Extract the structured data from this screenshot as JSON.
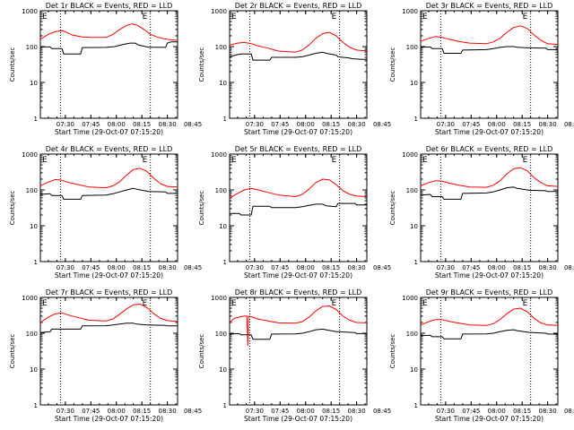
{
  "figure": {
    "xlabel": "Start Time (29-Oct-07 07:15:20)",
    "ylabel": "Counts/sec",
    "colors": {
      "events": "#000000",
      "lld": "#ff0000",
      "axes": "#000000",
      "background": "#ffffff"
    },
    "marker_labels": {
      "start": "E",
      "end": "E"
    }
  },
  "chart_data": [
    {
      "type": "line",
      "title": "Det 1r BLACK = Events, RED = LLD",
      "xlabel": "Start Time (29-Oct-07 07:15:20)",
      "ylabel": "Counts/sec",
      "yscale": "log",
      "ylim": [
        1,
        1000
      ],
      "yticks": [
        "1",
        "10",
        "100",
        "1000"
      ],
      "xticks": [
        "07:30",
        "07:45",
        "08:00",
        "08:15",
        "08:30",
        "08:45"
      ],
      "xrange_minutes": [
        15.3,
        96
      ],
      "vlines_minutes": [
        14.5,
        80
      ],
      "series": [
        {
          "name": "Events",
          "color": "#000000",
          "x": [
            15.3,
            21,
            22,
            28,
            29,
            39,
            40,
            54,
            59,
            64,
            68,
            71,
            73,
            79,
            80,
            89,
            90,
            92,
            95,
            96
          ],
          "y": [
            98,
            98,
            88,
            88,
            62,
            62,
            94,
            95,
            100,
            115,
            125,
            125,
            110,
            96,
            96,
            95,
            125,
            135,
            135,
            135
          ]
        },
        {
          "name": "LLD",
          "color": "#ff0000",
          "x": [
            15.3,
            20,
            24,
            28,
            30,
            34,
            40,
            45,
            54,
            58,
            62,
            66,
            69,
            72,
            75,
            78,
            80,
            84,
            88,
            92,
            96
          ],
          "y": [
            160,
            220,
            260,
            280,
            260,
            210,
            185,
            180,
            180,
            220,
            300,
            390,
            430,
            400,
            330,
            260,
            220,
            185,
            165,
            155,
            150
          ]
        }
      ]
    },
    {
      "type": "line",
      "title": "Det 2r BLACK = Events, RED = LLD",
      "xlabel": "Start Time (29-Oct-07 07:15:20)",
      "ylabel": "Counts/sec",
      "yscale": "log",
      "ylim": [
        1,
        1000
      ],
      "yticks": [
        "1",
        "10",
        "100",
        "1000"
      ],
      "xticks": [
        "07:30",
        "07:45",
        "08:00",
        "08:15",
        "08:30",
        "08:45"
      ],
      "xrange_minutes": [
        15.3,
        96
      ],
      "vlines_minutes": [
        14.5,
        80
      ],
      "series": [
        {
          "name": "Events",
          "color": "#000000",
          "x": [
            15.3,
            20,
            22,
            28,
            29,
            39,
            40,
            54,
            58,
            62,
            66,
            70,
            72,
            78,
            79,
            86,
            87,
            93,
            96
          ],
          "y": [
            52,
            60,
            62,
            62,
            42,
            42,
            50,
            50,
            52,
            58,
            65,
            70,
            65,
            58,
            52,
            48,
            46,
            44,
            44
          ]
        },
        {
          "name": "LLD",
          "color": "#ff0000",
          "x": [
            15.3,
            20,
            24,
            28,
            32,
            38,
            44,
            54,
            58,
            62,
            66,
            70,
            74,
            78,
            82,
            86,
            90,
            96
          ],
          "y": [
            110,
            125,
            130,
            120,
            105,
            90,
            75,
            70,
            80,
            110,
            170,
            230,
            250,
            200,
            130,
            95,
            80,
            75
          ]
        }
      ]
    },
    {
      "type": "line",
      "title": "Det 3r BLACK = Events, RED = LLD",
      "xlabel": "Start Time (29-Oct-07 07:15:20)",
      "ylabel": "Counts/sec",
      "yscale": "log",
      "ylim": [
        1,
        1000
      ],
      "yticks": [
        "1",
        "10",
        "100",
        "1000"
      ],
      "xticks": [
        "07:30",
        "07:45",
        "08:00",
        "08:15",
        "08:30",
        "08:45"
      ],
      "xrange_minutes": [
        15.3,
        96
      ],
      "vlines_minutes": [
        14.5,
        80
      ],
      "series": [
        {
          "name": "Events",
          "color": "#000000",
          "x": [
            15.3,
            21,
            22,
            28,
            29,
            39,
            40,
            54,
            58,
            62,
            66,
            70,
            72,
            78,
            79,
            89,
            90,
            96
          ],
          "y": [
            96,
            98,
            88,
            88,
            65,
            65,
            80,
            82,
            88,
            95,
            100,
            100,
            96,
            92,
            92,
            90,
            82,
            82
          ]
        },
        {
          "name": "LLD",
          "color": "#ff0000",
          "x": [
            15.3,
            20,
            24,
            28,
            32,
            38,
            44,
            54,
            58,
            62,
            66,
            70,
            74,
            78,
            82,
            86,
            90,
            96
          ],
          "y": [
            140,
            170,
            190,
            180,
            160,
            140,
            125,
            120,
            135,
            170,
            250,
            340,
            380,
            320,
            210,
            150,
            120,
            115
          ]
        }
      ]
    },
    {
      "type": "line",
      "title": "Det 4r BLACK = Events, RED = LLD",
      "xlabel": "Start Time (29-Oct-07 07:15:20)",
      "ylabel": "Counts/sec",
      "yscale": "log",
      "ylim": [
        1,
        1000
      ],
      "yticks": [
        "1",
        "10",
        "100",
        "1000"
      ],
      "xticks": [
        "07:30",
        "07:45",
        "08:00",
        "08:15",
        "08:30",
        "08:45"
      ],
      "xrange_minutes": [
        15.3,
        96
      ],
      "vlines_minutes": [
        14.5,
        80
      ],
      "series": [
        {
          "name": "Events",
          "color": "#000000",
          "x": [
            15.3,
            21,
            22,
            28,
            29,
            39,
            40,
            54,
            58,
            62,
            66,
            70,
            72,
            78,
            79,
            89,
            90,
            96
          ],
          "y": [
            75,
            78,
            70,
            70,
            55,
            55,
            70,
            72,
            78,
            88,
            100,
            110,
            105,
            92,
            90,
            88,
            80,
            80
          ]
        },
        {
          "name": "LLD",
          "color": "#ff0000",
          "x": [
            15.3,
            20,
            24,
            28,
            32,
            38,
            44,
            54,
            58,
            62,
            66,
            70,
            74,
            78,
            82,
            86,
            90,
            96
          ],
          "y": [
            130,
            165,
            195,
            185,
            160,
            140,
            120,
            115,
            130,
            170,
            260,
            370,
            400,
            330,
            210,
            150,
            125,
            120
          ]
        }
      ]
    },
    {
      "type": "line",
      "title": "Det 5r BLACK = Events, RED = LLD",
      "xlabel": "Start Time (29-Oct-07 07:15:20)",
      "ylabel": "Counts/sec",
      "yscale": "log",
      "ylim": [
        1,
        1000
      ],
      "yticks": [
        "1",
        "10",
        "100",
        "1000"
      ],
      "xticks": [
        "07:30",
        "07:45",
        "08:00",
        "08:15",
        "08:30",
        "08:45"
      ],
      "xrange_minutes": [
        15.3,
        96
      ],
      "vlines_minutes": [
        14.5,
        80
      ],
      "series": [
        {
          "name": "Events",
          "color": "#000000",
          "x": [
            15.3,
            21,
            22,
            28,
            29,
            39,
            40,
            54,
            58,
            62,
            66,
            70,
            72,
            78,
            79,
            89,
            90,
            96
          ],
          "y": [
            22,
            22,
            20,
            20,
            35,
            35,
            32,
            32,
            34,
            37,
            40,
            40,
            36,
            34,
            42,
            42,
            38,
            38
          ]
        },
        {
          "name": "LLD",
          "color": "#ff0000",
          "x": [
            15.3,
            20,
            24,
            28,
            32,
            38,
            44,
            54,
            58,
            62,
            66,
            70,
            74,
            78,
            82,
            86,
            90,
            96
          ],
          "y": [
            60,
            80,
            100,
            110,
            100,
            85,
            72,
            65,
            75,
            105,
            160,
            200,
            190,
            140,
            95,
            75,
            68,
            65
          ]
        }
      ]
    },
    {
      "type": "line",
      "title": "Det 6r BLACK = Events, RED = LLD",
      "xlabel": "Start Time (29-Oct-07 07:15:20)",
      "ylabel": "Counts/sec",
      "yscale": "log",
      "ylim": [
        1,
        1000
      ],
      "yticks": [
        "1",
        "10",
        "100",
        "1000"
      ],
      "xticks": [
        "07:30",
        "07:45",
        "08:00",
        "08:15",
        "08:30",
        "08:45"
      ],
      "xrange_minutes": [
        15.3,
        96
      ],
      "vlines_minutes": [
        14.5,
        80
      ],
      "series": [
        {
          "name": "Events",
          "color": "#000000",
          "x": [
            15.3,
            21,
            22,
            28,
            29,
            39,
            40,
            54,
            58,
            62,
            66,
            70,
            72,
            78,
            79,
            89,
            90,
            96
          ],
          "y": [
            72,
            75,
            65,
            65,
            55,
            55,
            80,
            82,
            88,
            100,
            115,
            120,
            110,
            100,
            98,
            95,
            90,
            90
          ]
        },
        {
          "name": "LLD",
          "color": "#ff0000",
          "x": [
            15.3,
            20,
            24,
            28,
            32,
            38,
            44,
            54,
            58,
            62,
            66,
            70,
            74,
            78,
            82,
            86,
            90,
            96
          ],
          "y": [
            130,
            160,
            180,
            175,
            155,
            135,
            120,
            118,
            135,
            180,
            280,
            390,
            420,
            340,
            220,
            160,
            130,
            125
          ]
        }
      ]
    },
    {
      "type": "line",
      "title": "Det 7r BLACK = Events, RED = LLD",
      "xlabel": "Start Time (29-Oct-07 07:15:20)",
      "ylabel": "Counts/sec",
      "yscale": "log",
      "ylim": [
        1,
        1000
      ],
      "yticks": [
        "1",
        "10",
        "100",
        "1000"
      ],
      "xticks": [
        "07:30",
        "07:45",
        "08:00",
        "08:15",
        "08:30",
        "08:45"
      ],
      "xrange_minutes": [
        15.3,
        96
      ],
      "vlines_minutes": [
        14.5,
        80
      ],
      "series": [
        {
          "name": "Events",
          "color": "#000000",
          "x": [
            15.3,
            21,
            22,
            28,
            29,
            39,
            40,
            54,
            58,
            62,
            66,
            70,
            72,
            78,
            79,
            89,
            90,
            96
          ],
          "y": [
            105,
            110,
            130,
            130,
            130,
            130,
            160,
            162,
            170,
            180,
            190,
            190,
            180,
            170,
            170,
            165,
            160,
            160
          ]
        },
        {
          "name": "LLD",
          "color": "#ff0000",
          "x": [
            15.3,
            20,
            24,
            28,
            32,
            38,
            44,
            54,
            58,
            62,
            66,
            70,
            74,
            78,
            82,
            86,
            90,
            96
          ],
          "y": [
            200,
            280,
            350,
            370,
            320,
            270,
            230,
            220,
            250,
            340,
            480,
            620,
            650,
            520,
            350,
            260,
            225,
            215
          ]
        }
      ]
    },
    {
      "type": "line",
      "title": "Det 8r BLACK = Events, RED = LLD",
      "xlabel": "Start Time (29-Oct-07 07:15:20)",
      "ylabel": "Counts/sec",
      "yscale": "log",
      "ylim": [
        1,
        1000
      ],
      "yticks": [
        "1",
        "10",
        "100",
        "1000"
      ],
      "xticks": [
        "07:30",
        "07:45",
        "08:00",
        "08:15",
        "08:30",
        "08:45"
      ],
      "xrange_minutes": [
        15.3,
        96
      ],
      "vlines_minutes": [
        14.5,
        80
      ],
      "series": [
        {
          "name": "Events",
          "color": "#000000",
          "x": [
            15.3,
            21,
            22,
            28,
            29,
            39,
            40,
            54,
            58,
            62,
            66,
            70,
            72,
            78,
            79,
            89,
            90,
            96
          ],
          "y": [
            95,
            98,
            90,
            90,
            68,
            68,
            95,
            96,
            100,
            110,
            125,
            130,
            125,
            110,
            110,
            105,
            98,
            98
          ]
        },
        {
          "name": "LLD",
          "color": "#ff0000",
          "x": [
            15.3,
            18,
            22,
            24,
            25.5,
            26,
            26.5,
            28,
            32,
            38,
            44,
            54,
            58,
            62,
            66,
            70,
            74,
            78,
            82,
            86,
            90,
            96
          ],
          "y": [
            200,
            260,
            290,
            300,
            300,
            45,
            300,
            290,
            250,
            220,
            195,
            190,
            210,
            280,
            420,
            560,
            580,
            460,
            300,
            230,
            200,
            195
          ]
        }
      ]
    },
    {
      "type": "line",
      "title": "Det 9r BLACK = Events, RED = LLD",
      "xlabel": "Start Time (29-Oct-07 07:15:20)",
      "ylabel": "Counts/sec",
      "yscale": "log",
      "ylim": [
        1,
        1000
      ],
      "yticks": [
        "1",
        "10",
        "100",
        "1000"
      ],
      "xticks": [
        "07:30",
        "07:45",
        "08:00",
        "08:15",
        "08:30",
        "08:45"
      ],
      "xrange_minutes": [
        15.3,
        96
      ],
      "vlines_minutes": [
        14.5,
        80
      ],
      "series": [
        {
          "name": "Events",
          "color": "#000000",
          "x": [
            15.3,
            21,
            22,
            28,
            29,
            39,
            40,
            54,
            58,
            62,
            66,
            70,
            72,
            78,
            79,
            89,
            90,
            96
          ],
          "y": [
            85,
            88,
            80,
            80,
            70,
            70,
            95,
            96,
            100,
            110,
            120,
            125,
            118,
            108,
            106,
            100,
            95,
            95
          ]
        },
        {
          "name": "LLD",
          "color": "#ff0000",
          "x": [
            15.3,
            20,
            24,
            28,
            32,
            38,
            44,
            54,
            58,
            62,
            66,
            70,
            74,
            78,
            82,
            86,
            90,
            96
          ],
          "y": [
            170,
            210,
            240,
            240,
            215,
            190,
            170,
            165,
            185,
            240,
            350,
            470,
            500,
            400,
            260,
            195,
            170,
            165
          ]
        }
      ]
    }
  ]
}
